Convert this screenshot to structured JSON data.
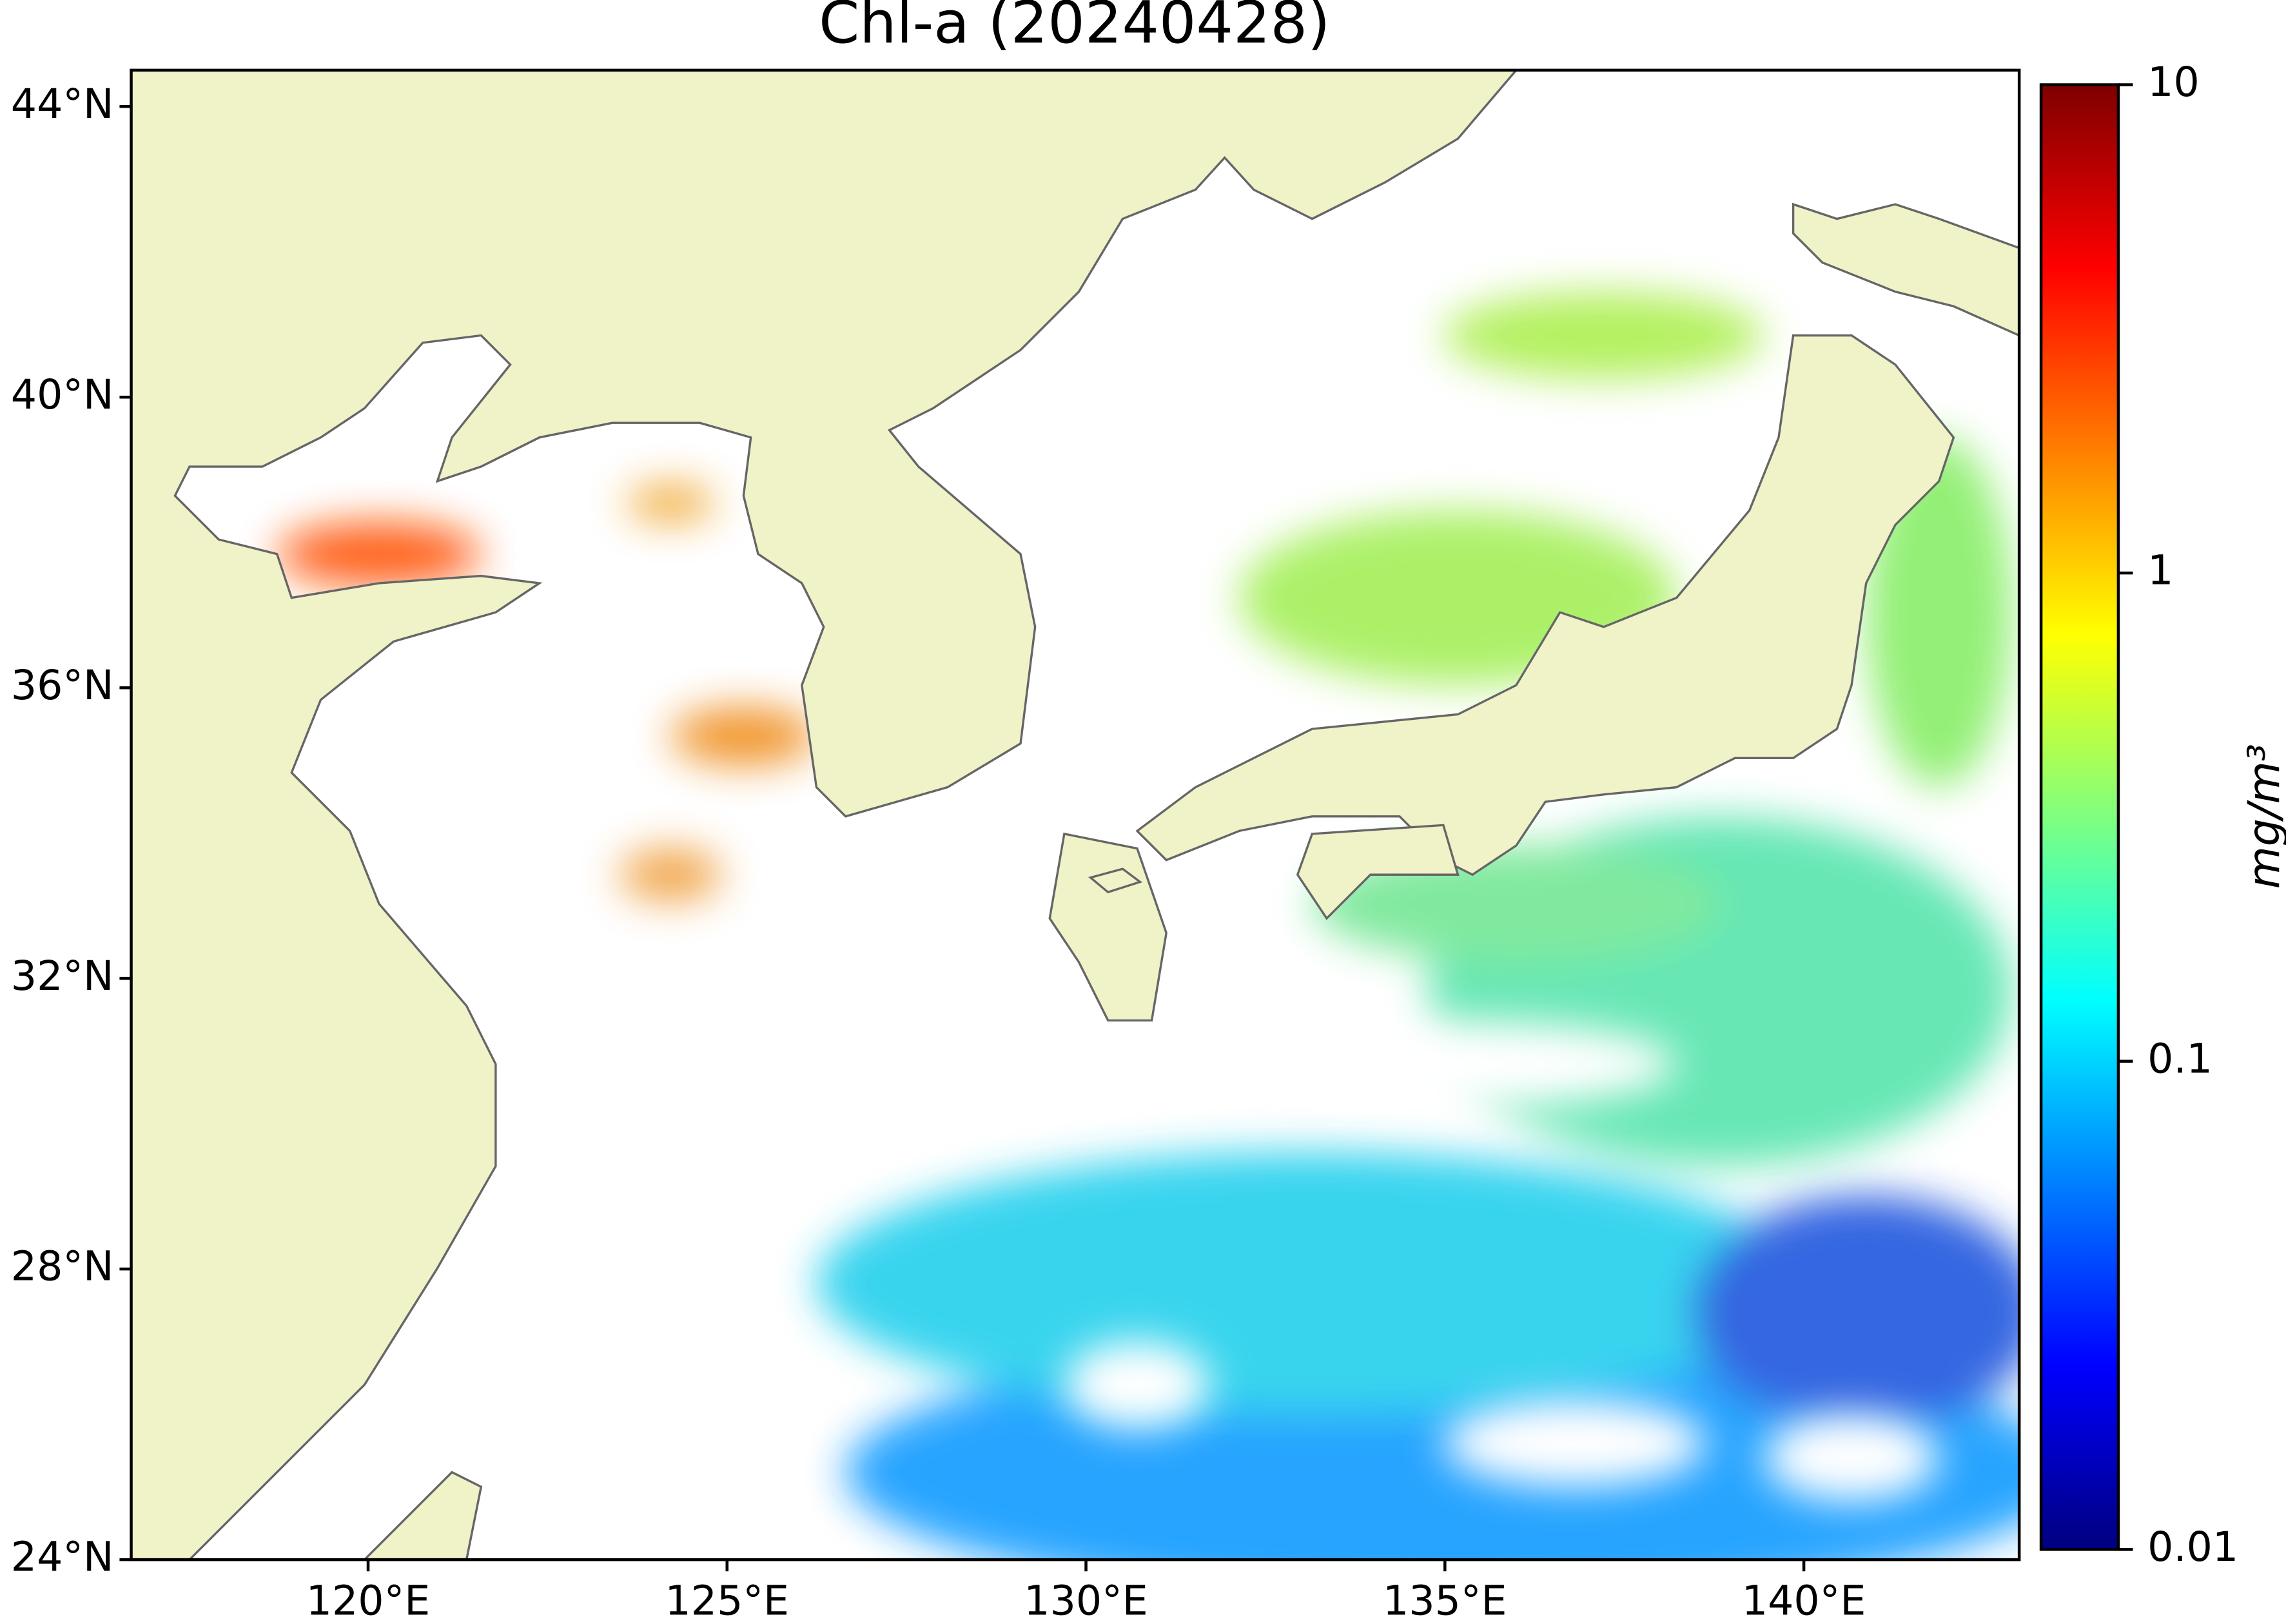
{
  "map": {
    "title": "Chl-a (20240428)",
    "xlim": [
      116.7,
      143
    ],
    "ylim": [
      24,
      44.5
    ],
    "xticks": [
      {
        "value": 120,
        "label": "120°E"
      },
      {
        "value": 125,
        "label": "125°E"
      },
      {
        "value": 130,
        "label": "130°E"
      },
      {
        "value": 135,
        "label": "135°E"
      },
      {
        "value": 140,
        "label": "140°E"
      }
    ],
    "yticks": [
      {
        "value": 24,
        "label": "24°N"
      },
      {
        "value": 28,
        "label": "28°N"
      },
      {
        "value": 32,
        "label": "32°N"
      },
      {
        "value": 36,
        "label": "36°N"
      },
      {
        "value": 40,
        "label": "40°N"
      },
      {
        "value": 44,
        "label": "44°N"
      }
    ],
    "colorbar": {
      "label": "mg/m³",
      "log_scale": true,
      "lim": [
        0.01,
        10
      ],
      "ticks": [
        0.01,
        0.1,
        1,
        10
      ],
      "colormap": [
        "#00007f",
        "#0000ff",
        "#007fff",
        "#00ffff",
        "#7fff7f",
        "#ffff00",
        "#ff7f00",
        "#ff0000",
        "#7f0000"
      ]
    }
  }
}
